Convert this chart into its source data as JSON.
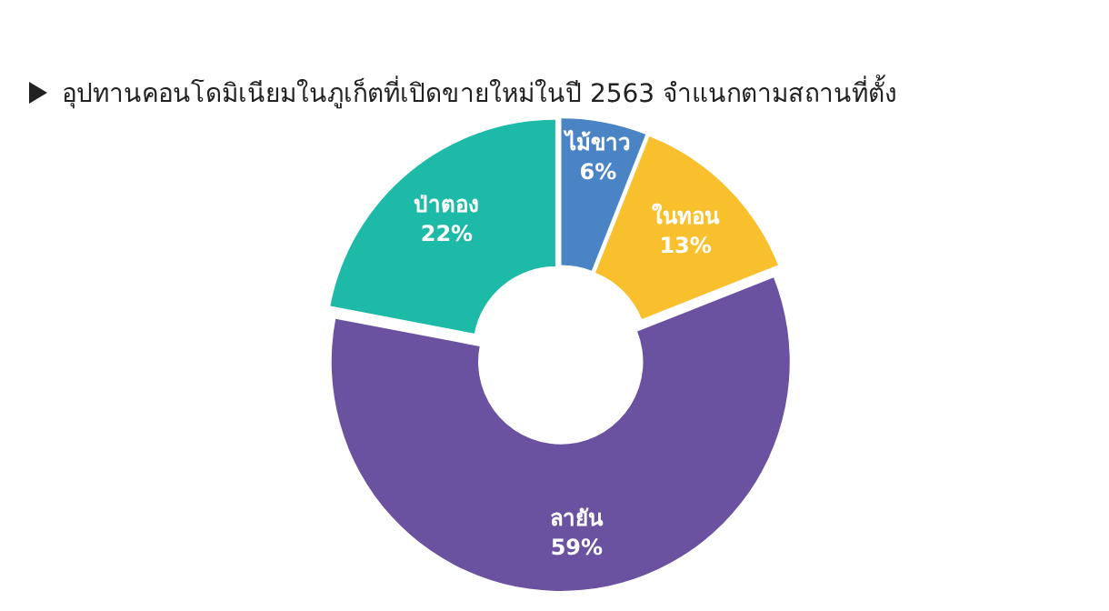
{
  "chart_data": {
    "type": "donut",
    "title": "อุปทานคอนโดมิเนียมในภูเก็ตที่เปิดขายใหม่ในปี 2563 จำแนกตามสถานที่ตั้ง",
    "categories": [
      "ไม้ขาว",
      "ในทอน",
      "ลายัน",
      "ป่าตอง"
    ],
    "values": [
      6,
      13,
      59,
      22
    ],
    "colors": [
      "#4a84c4",
      "#f9c02e",
      "#6a52a0",
      "#1ebaa8"
    ],
    "value_labels": [
      "6%",
      "13%",
      "59%",
      "22%"
    ]
  }
}
